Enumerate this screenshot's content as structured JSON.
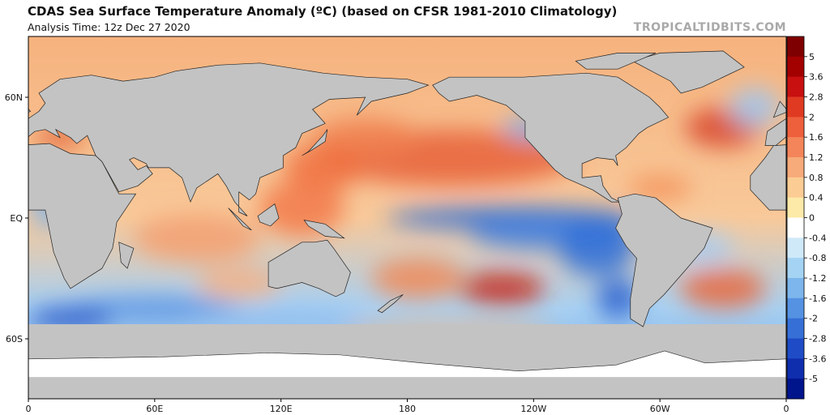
{
  "header": {
    "title": "CDAS Sea Surface Temperature Anomaly (ºC) (based on CFSR 1981-2010 Climatology)",
    "subtitle": "Analysis Time: 12z Dec 27 2020",
    "watermark": "TROPICALTIDBITS.COM"
  },
  "map": {
    "lat_labels": [
      "60N",
      "EQ",
      "60S"
    ],
    "lon_labels": [
      "0",
      "60E",
      "120E",
      "180",
      "120W",
      "60W",
      "0"
    ]
  },
  "colorbar": {
    "labels": [
      "5",
      "3.6",
      "2.8",
      "2",
      "1.6",
      "1.2",
      "0.8",
      "0.4",
      "0",
      "-0.4",
      "-0.8",
      "-1.2",
      "-1.6",
      "-2",
      "-2.8",
      "-3.6",
      "-5"
    ]
  }
}
